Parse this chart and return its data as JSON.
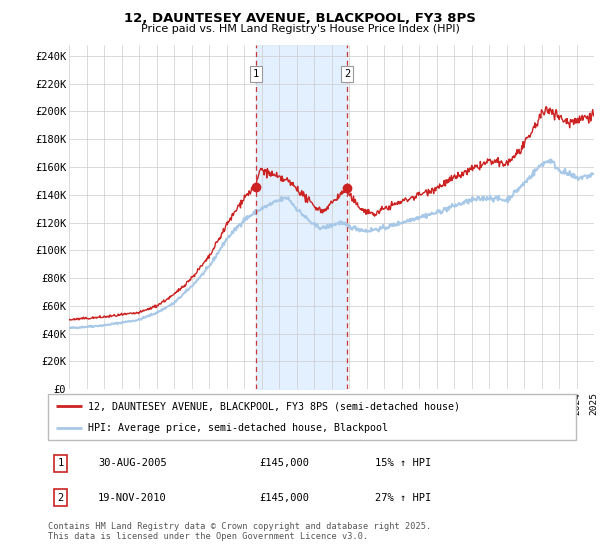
{
  "title": "12, DAUNTESEY AVENUE, BLACKPOOL, FY3 8PS",
  "subtitle": "Price paid vs. HM Land Registry's House Price Index (HPI)",
  "ylabel_ticks": [
    "£0",
    "£20K",
    "£40K",
    "£60K",
    "£80K",
    "£100K",
    "£120K",
    "£140K",
    "£160K",
    "£180K",
    "£200K",
    "£220K",
    "£240K"
  ],
  "ylim": [
    0,
    248000
  ],
  "hpi_color": "#a8c8e8",
  "price_color": "#cc2222",
  "shade_color": "#ddeeff",
  "vline_color": "#cc2222",
  "legend_house": "12, DAUNTESEY AVENUE, BLACKPOOL, FY3 8PS (semi-detached house)",
  "legend_hpi": "HPI: Average price, semi-detached house, Blackpool",
  "transaction1_label": "1",
  "transaction1_date": "30-AUG-2005",
  "transaction1_price": "£145,000",
  "transaction1_hpi": "15% ↑ HPI",
  "transaction2_label": "2",
  "transaction2_date": "19-NOV-2010",
  "transaction2_price": "£145,000",
  "transaction2_hpi": "27% ↑ HPI",
  "footer": "Contains HM Land Registry data © Crown copyright and database right 2025.\nThis data is licensed under the Open Government Licence v3.0.",
  "x_start_year": 1995,
  "x_end_year": 2025,
  "transaction1_x": 2005.66,
  "transaction2_x": 2010.9
}
